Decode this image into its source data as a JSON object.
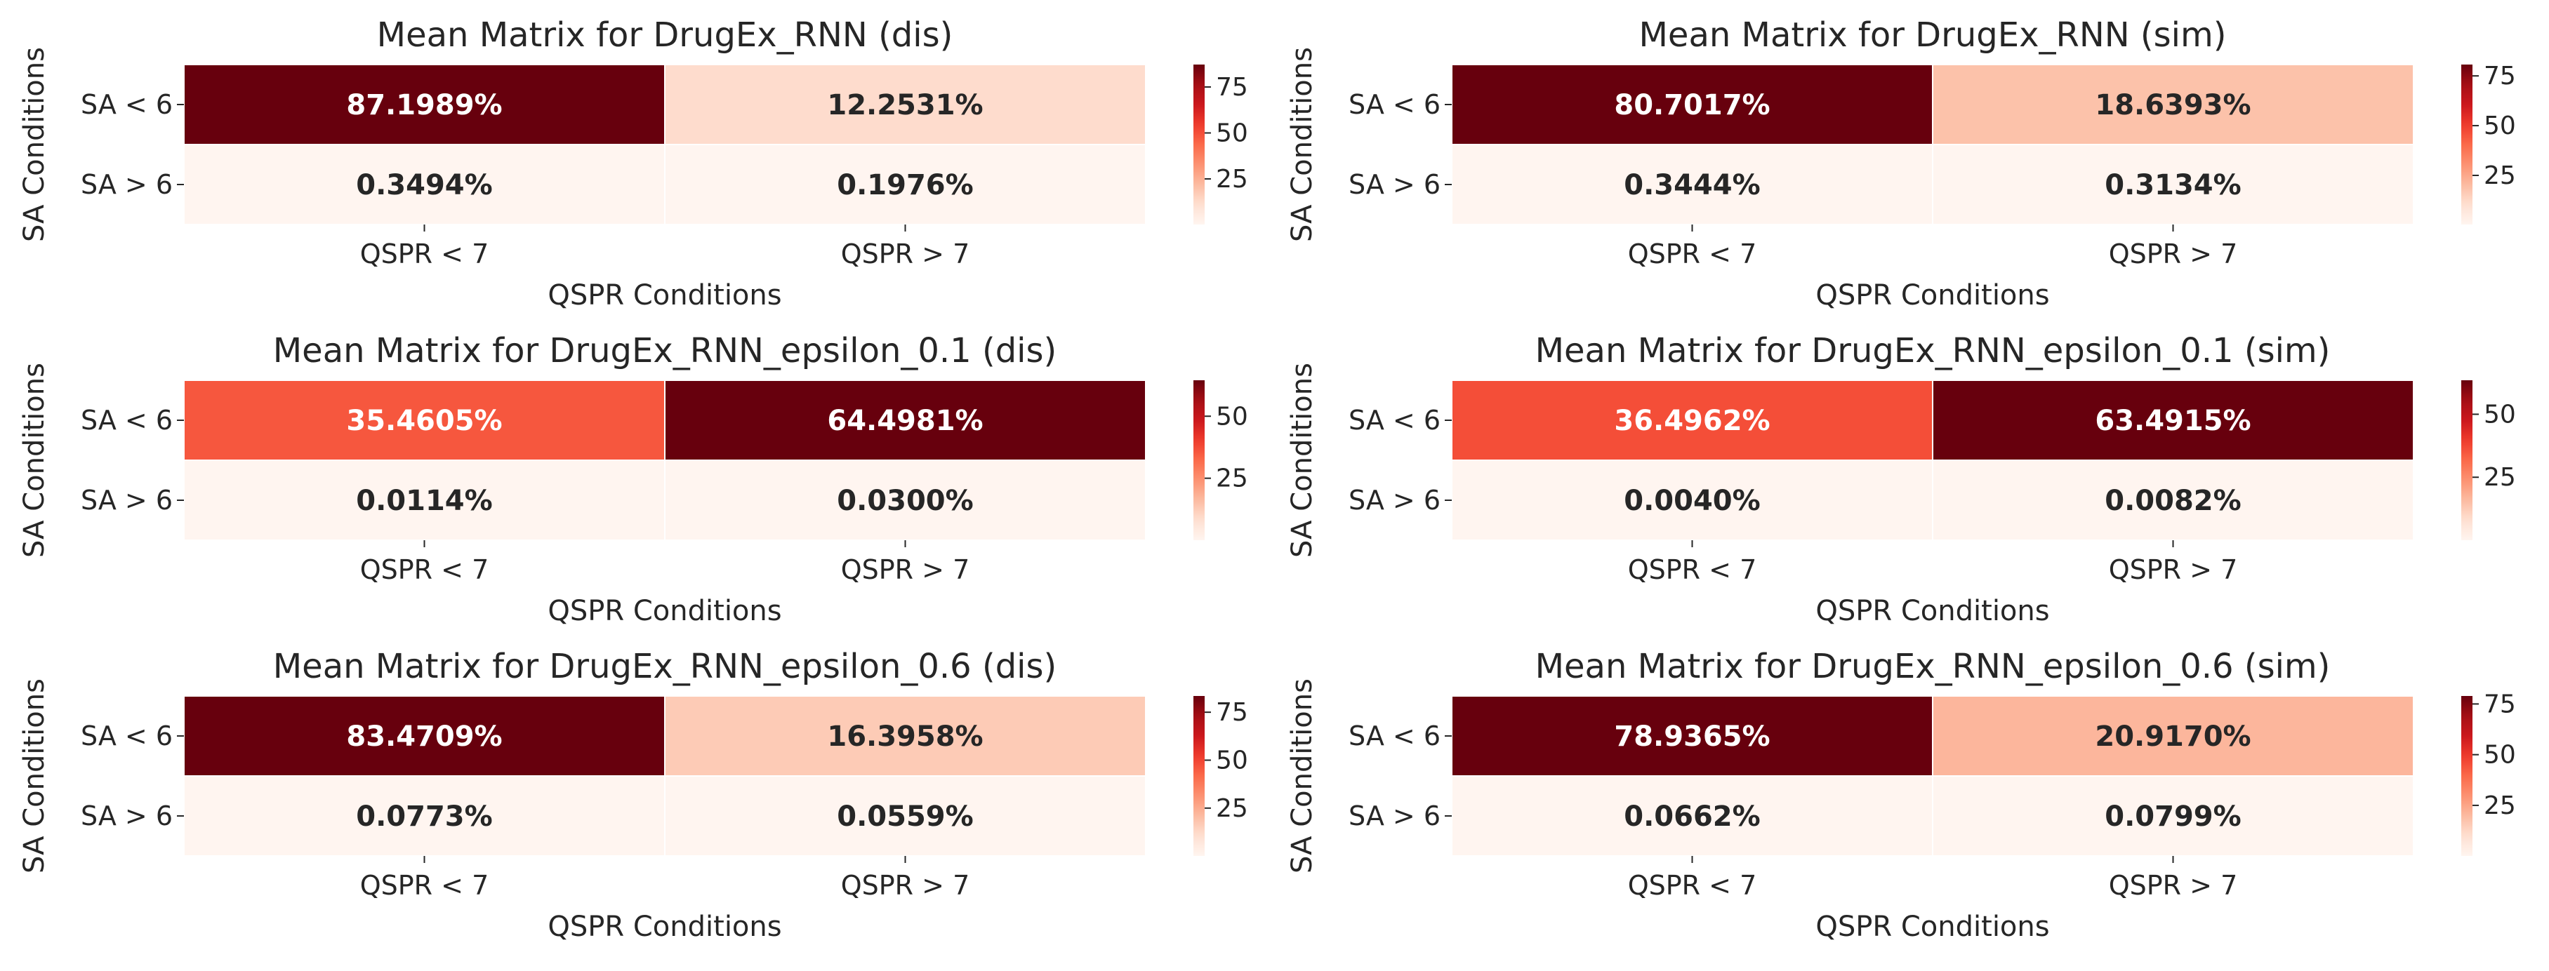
{
  "chart_data": [
    {
      "type": "heatmap",
      "title": "Mean Matrix for DrugEx_RNN (dis)",
      "xlabel": "QSPR Conditions",
      "ylabel": "SA Conditions",
      "x_categories": [
        "QSPR < 7",
        "QSPR > 7"
      ],
      "y_categories": [
        "SA < 6",
        "SA > 6"
      ],
      "values": [
        [
          87.1989,
          12.2531
        ],
        [
          0.3494,
          0.1976
        ]
      ],
      "cell_labels": [
        [
          "87.1989%",
          "12.2531%"
        ],
        [
          "0.3494%",
          "0.1976%"
        ]
      ],
      "colorbar": {
        "ticks": [
          25,
          50,
          75
        ],
        "tick_labels": [
          "25",
          "50",
          "75"
        ],
        "range": [
          0.1976,
          87.1989
        ]
      },
      "colormap": "Reds"
    },
    {
      "type": "heatmap",
      "title": "Mean Matrix for DrugEx_RNN (sim)",
      "xlabel": "QSPR Conditions",
      "ylabel": "SA Conditions",
      "x_categories": [
        "QSPR < 7",
        "QSPR > 7"
      ],
      "y_categories": [
        "SA < 6",
        "SA > 6"
      ],
      "values": [
        [
          80.7017,
          18.6393
        ],
        [
          0.3444,
          0.3134
        ]
      ],
      "cell_labels": [
        [
          "80.7017%",
          "18.6393%"
        ],
        [
          "0.3444%",
          "0.3134%"
        ]
      ],
      "colorbar": {
        "ticks": [
          25,
          50,
          75
        ],
        "tick_labels": [
          "25",
          "50",
          "75"
        ],
        "range": [
          0.3134,
          80.7017
        ]
      },
      "colormap": "Reds"
    },
    {
      "type": "heatmap",
      "title": "Mean Matrix for DrugEx_RNN_epsilon_0.1 (dis)",
      "xlabel": "QSPR Conditions",
      "ylabel": "SA Conditions",
      "x_categories": [
        "QSPR < 7",
        "QSPR > 7"
      ],
      "y_categories": [
        "SA < 6",
        "SA > 6"
      ],
      "values": [
        [
          35.4605,
          64.4981
        ],
        [
          0.0114,
          0.03
        ]
      ],
      "cell_labels": [
        [
          "35.4605%",
          "64.4981%"
        ],
        [
          "0.0114%",
          "0.0300%"
        ]
      ],
      "colorbar": {
        "ticks": [
          25,
          50
        ],
        "tick_labels": [
          "25",
          "50"
        ],
        "range": [
          0.0114,
          64.4981
        ]
      },
      "colormap": "Reds"
    },
    {
      "type": "heatmap",
      "title": "Mean Matrix for DrugEx_RNN_epsilon_0.1 (sim)",
      "xlabel": "QSPR Conditions",
      "ylabel": "SA Conditions",
      "x_categories": [
        "QSPR < 7",
        "QSPR > 7"
      ],
      "y_categories": [
        "SA < 6",
        "SA > 6"
      ],
      "values": [
        [
          36.4962,
          63.4915
        ],
        [
          0.004,
          0.0082
        ]
      ],
      "cell_labels": [
        [
          "36.4962%",
          "63.4915%"
        ],
        [
          "0.0040%",
          "0.0082%"
        ]
      ],
      "colorbar": {
        "ticks": [
          25,
          50
        ],
        "tick_labels": [
          "25",
          "50"
        ],
        "range": [
          0.004,
          63.4915
        ]
      },
      "colormap": "Reds"
    },
    {
      "type": "heatmap",
      "title": "Mean Matrix for DrugEx_RNN_epsilon_0.6 (dis)",
      "xlabel": "QSPR Conditions",
      "ylabel": "SA Conditions",
      "x_categories": [
        "QSPR < 7",
        "QSPR > 7"
      ],
      "y_categories": [
        "SA < 6",
        "SA > 6"
      ],
      "values": [
        [
          83.4709,
          16.3958
        ],
        [
          0.0773,
          0.0559
        ]
      ],
      "cell_labels": [
        [
          "83.4709%",
          "16.3958%"
        ],
        [
          "0.0773%",
          "0.0559%"
        ]
      ],
      "colorbar": {
        "ticks": [
          25,
          50,
          75
        ],
        "tick_labels": [
          "25",
          "50",
          "75"
        ],
        "range": [
          0.0559,
          83.4709
        ]
      },
      "colormap": "Reds"
    },
    {
      "type": "heatmap",
      "title": "Mean Matrix for DrugEx_RNN_epsilon_0.6 (sim)",
      "xlabel": "QSPR Conditions",
      "ylabel": "SA Conditions",
      "x_categories": [
        "QSPR < 7",
        "QSPR > 7"
      ],
      "y_categories": [
        "SA < 6",
        "SA > 6"
      ],
      "values": [
        [
          78.9365,
          20.917
        ],
        [
          0.0662,
          0.0799
        ]
      ],
      "cell_labels": [
        [
          "78.9365%",
          "20.9170%"
        ],
        [
          "0.0662%",
          "0.0799%"
        ]
      ],
      "colorbar": {
        "ticks": [
          25,
          50,
          75
        ],
        "tick_labels": [
          "25",
          "50",
          "75"
        ],
        "range": [
          0.0662,
          78.9365
        ]
      },
      "colormap": "Reds"
    }
  ]
}
